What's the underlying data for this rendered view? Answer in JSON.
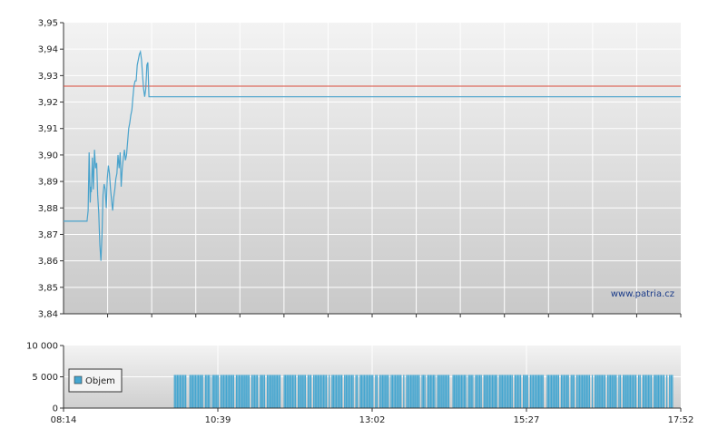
{
  "colors": {
    "price_line": "#4aa3cc",
    "reference_line": "#d94a3a",
    "volume_bar": "#45a6d0",
    "grid": "#ffffff",
    "plot_bg_top": "#f2f2f2",
    "plot_bg_bottom": "#c8c8c8",
    "axis": "#333333"
  },
  "watermark": "www.patria.cz",
  "chart_data": [
    {
      "type": "line",
      "name": "price",
      "ylim": [
        3.84,
        3.95
      ],
      "yticks": [
        "3,95",
        "3,94",
        "3,93",
        "3,92",
        "3,91",
        "3,90",
        "3,89",
        "3,88",
        "3,87",
        "3,86",
        "3,85",
        "3,84"
      ],
      "reference_value": 3.926,
      "xlim_min": [
        494,
        1072
      ],
      "x_minutes": [
        494,
        516,
        517,
        518,
        519,
        519.5,
        520,
        521,
        522,
        523,
        524,
        525,
        526,
        527,
        528,
        529,
        530,
        531,
        532,
        533,
        534,
        535,
        536,
        537,
        538,
        539,
        540,
        541,
        542,
        543,
        544,
        545,
        546,
        547,
        548,
        549,
        550,
        551,
        552,
        553,
        554,
        555,
        556,
        557,
        558,
        559,
        560,
        561,
        562,
        563,
        564,
        565,
        566,
        567,
        568,
        569,
        570,
        571,
        572,
        573,
        574,
        575,
        576,
        577,
        578,
        579,
        580,
        581,
        582,
        583,
        584,
        585,
        586,
        587,
        588,
        589,
        590,
        591,
        592,
        593,
        594,
        595,
        596,
        597,
        598,
        1072
      ],
      "y": [
        3.875,
        3.875,
        3.879,
        3.901,
        3.882,
        3.888,
        3.886,
        3.899,
        3.887,
        3.902,
        3.895,
        3.897,
        3.885,
        3.878,
        3.866,
        3.86,
        3.87,
        3.885,
        3.889,
        3.887,
        3.88,
        3.891,
        3.896,
        3.893,
        3.887,
        3.883,
        3.879,
        3.884,
        3.887,
        3.891,
        3.893,
        3.9,
        3.895,
        3.901,
        3.888,
        3.895,
        3.899,
        3.902,
        3.898,
        3.9,
        3.905,
        3.91,
        3.912,
        3.915,
        3.917,
        3.922,
        3.926,
        3.928,
        3.928,
        3.934,
        3.936,
        3.938,
        3.939,
        3.936,
        3.93,
        3.925,
        3.922,
        3.925,
        3.934,
        3.935,
        3.922,
        3.922,
        3.922,
        3.922,
        3.922,
        3.922,
        3.922,
        3.922,
        3.922,
        3.922,
        3.922,
        3.922,
        3.922,
        3.922,
        3.922,
        3.922,
        3.922,
        3.922,
        3.922,
        3.922,
        3.922,
        3.922,
        3.922,
        3.922,
        3.922,
        3.922
      ]
    },
    {
      "type": "bar",
      "name": "volume",
      "legend": "Objem",
      "ylim": [
        0,
        10000
      ],
      "yticks": [
        "10 000",
        "5 000",
        "0"
      ],
      "xticks": [
        "08:14",
        "10:39",
        "13:02",
        "15:27",
        "17:52"
      ],
      "xlim_min": [
        494,
        1072
      ],
      "bar_start_min": 596,
      "bar_end_min": 1064,
      "bar_value": 5000
    }
  ]
}
